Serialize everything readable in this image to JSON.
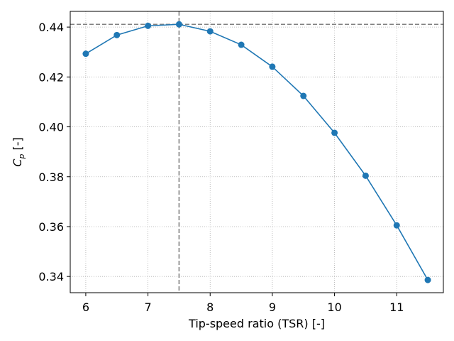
{
  "chart_data": {
    "type": "line",
    "title": "",
    "xlabel": "Tip-speed ratio (TSR) [-]",
    "ylabel_main": "C",
    "ylabel_sub": "p",
    "ylabel_suffix": " [-]",
    "xlim": [
      5.75,
      11.75
    ],
    "ylim": [
      0.3335,
      0.4463
    ],
    "xticks": [
      6,
      7,
      8,
      9,
      10,
      11
    ],
    "xtick_labels": [
      "6",
      "7",
      "8",
      "9",
      "10",
      "11"
    ],
    "yticks": [
      0.34,
      0.36,
      0.38,
      0.4,
      0.42,
      0.44
    ],
    "ytick_labels": [
      "0.34",
      "0.36",
      "0.38",
      "0.40",
      "0.42",
      "0.44"
    ],
    "grid": true,
    "series": [
      {
        "name": "Cp",
        "color": "#1f77b4",
        "x": [
          6.0,
          6.5,
          7.0,
          7.5,
          8.0,
          8.5,
          9.0,
          9.5,
          10.0,
          10.5,
          11.0,
          11.5
        ],
        "y": [
          0.4293,
          0.4368,
          0.4405,
          0.4411,
          0.4383,
          0.4329,
          0.4241,
          0.4124,
          0.3976,
          0.3804,
          0.3605,
          0.3386
        ]
      }
    ],
    "reference_lines": {
      "color": "#808080",
      "vertical_x": 7.5,
      "horizontal_y": 0.4411
    }
  }
}
